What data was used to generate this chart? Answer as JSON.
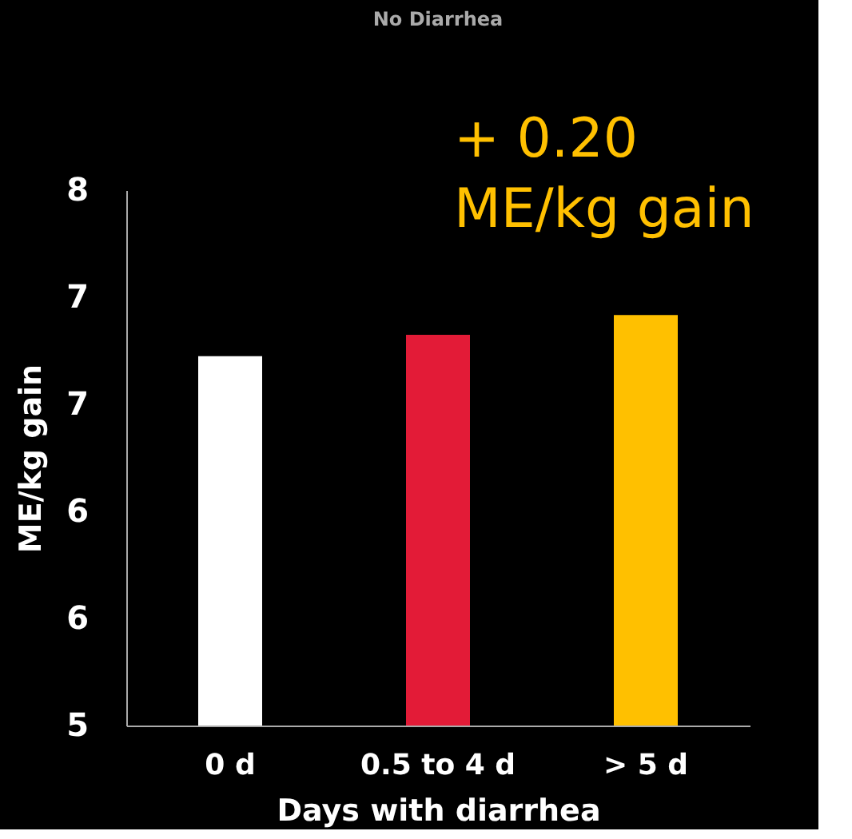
{
  "chart_data": {
    "type": "bar",
    "title": "No Diarrhea",
    "xlabel": "Days with diarrhea",
    "ylabel": "ME/kg gain",
    "categories": [
      "0 d",
      "0.5 to 4 d",
      "> 5 d"
    ],
    "values": [
      7.07,
      7.19,
      7.3
    ],
    "colors": [
      "#ffffff",
      "#e31b37",
      "#ffc000"
    ],
    "ylim": [
      5,
      8
    ],
    "yticks": [
      5,
      {
        "value": 5.6,
        "label": "6"
      },
      {
        "value": 6.2,
        "label": "6"
      },
      {
        "value": 6.8,
        "label": "7"
      },
      {
        "value": 7.4,
        "label": "7"
      },
      8
    ],
    "grid": false,
    "annotations": [
      "+ 0.20\nME/kg gain"
    ]
  }
}
